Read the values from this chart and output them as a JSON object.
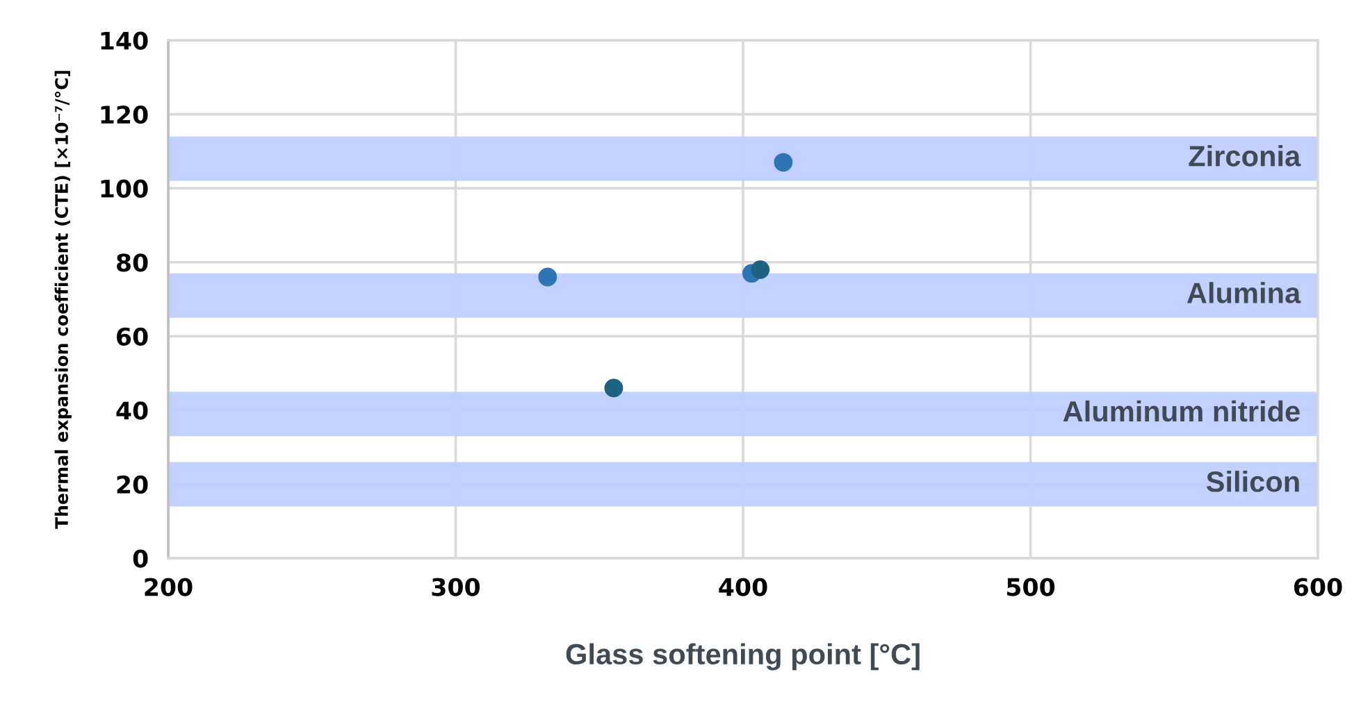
{
  "chart_data": {
    "type": "scatter",
    "xlabel": "Glass softening point [°C]",
    "ylabel": "Thermal expansion coefficient (CTE) [×10⁻⁷/°C]",
    "series": [
      {
        "x": [
          414,
          332,
          403,
          406,
          355
        ],
        "values": [
          107,
          76,
          77,
          78,
          46
        ],
        "colors": [
          "#2e75b6",
          "#2e75b6",
          "#2e75b6",
          "#1f6383",
          "#1f6383"
        ]
      }
    ],
    "xlim": [
      200,
      600
    ],
    "xticks": [
      200,
      300,
      400,
      500,
      600
    ],
    "ylim": [
      0,
      140
    ],
    "yticks": [
      0,
      20,
      40,
      60,
      80,
      100,
      120,
      140
    ],
    "grid": true,
    "marker": "circle",
    "bands": [
      {
        "axis": "y",
        "from": 102,
        "to": 114,
        "label": "Zirconia",
        "color": "#bfcfff"
      },
      {
        "axis": "y",
        "from": 65,
        "to": 77,
        "label": "Alumina",
        "color": "#bfcfff"
      },
      {
        "axis": "y",
        "from": 33,
        "to": 45,
        "label": "Aluminum nitride",
        "color": "#bfcfff"
      },
      {
        "axis": "y",
        "from": 14,
        "to": 26,
        "label": "Silicon",
        "color": "#bfcfff"
      }
    ]
  }
}
